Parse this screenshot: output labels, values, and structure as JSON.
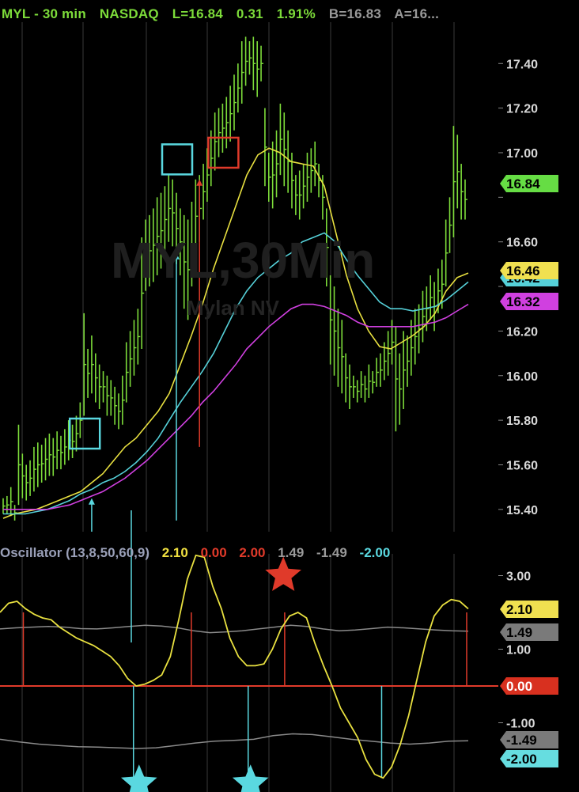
{
  "header": {
    "symbol_interval": "MYL - 30 min",
    "exchange": "NASDAQ",
    "last": "L=16.84",
    "change": "0.31",
    "change_pct": "1.91%",
    "bid": "B=16.83",
    "ask": "A=16..."
  },
  "watermark": {
    "symbol": "MYL,30Min",
    "name": "Mylan NV"
  },
  "oscillator_header": {
    "title": "Oscillator (13,8,50,60,9)",
    "values": [
      {
        "text": "2.10",
        "color": "#f0e040"
      },
      {
        "text": "0.00",
        "color": "#e03a2a"
      },
      {
        "text": "2.00",
        "color": "#e03a2a"
      },
      {
        "text": "1.49",
        "color": "#9a9a9a"
      },
      {
        "text": "-1.49",
        "color": "#9a9a9a"
      },
      {
        "text": "-2.00",
        "color": "#5ad8e0"
      }
    ]
  },
  "colors": {
    "bars": "#7ddc3a",
    "ma_fast": "#e8e040",
    "ma_mid": "#55d0d8",
    "ma_slow": "#d040e0",
    "osc_line": "#e8e040",
    "osc_band": "#8a8a8a",
    "zero_line": "#e03a2a",
    "grid": "#3a3a3a",
    "cyan_marker": "#5ad8e0",
    "red_marker": "#e03a2a"
  },
  "chart_data": [
    {
      "type": "bar",
      "name": "price",
      "ylim": [
        15.3,
        17.55
      ],
      "yticks": [
        15.4,
        15.6,
        15.8,
        16.0,
        16.2,
        16.4,
        16.6,
        16.8,
        17.0,
        17.2,
        17.4
      ],
      "ytick_labels": [
        "15.40",
        "15.60",
        "15.80",
        "16.00",
        "16.20",
        "",
        "16.60",
        "",
        "17.00",
        "17.20",
        "17.40"
      ],
      "bars": [
        [
          15.45,
          15.38
        ],
        [
          15.46,
          15.38
        ],
        [
          15.5,
          15.37
        ],
        [
          15.42,
          15.35
        ],
        [
          15.78,
          15.42
        ],
        [
          15.65,
          15.45
        ],
        [
          15.6,
          15.44
        ],
        [
          15.62,
          15.46
        ],
        [
          15.68,
          15.48
        ],
        [
          15.7,
          15.5
        ],
        [
          15.69,
          15.52
        ],
        [
          15.72,
          15.53
        ],
        [
          15.74,
          15.55
        ],
        [
          15.72,
          15.55
        ],
        [
          15.75,
          15.58
        ],
        [
          15.73,
          15.58
        ],
        [
          15.76,
          15.6
        ],
        [
          15.8,
          15.62
        ],
        [
          15.78,
          15.63
        ],
        [
          15.82,
          15.66
        ],
        [
          15.88,
          15.72
        ],
        [
          16.28,
          15.82
        ],
        [
          16.12,
          15.9
        ],
        [
          16.18,
          15.92
        ],
        [
          16.1,
          15.88
        ],
        [
          16.05,
          15.85
        ],
        [
          16.02,
          15.88
        ],
        [
          16.0,
          15.82
        ],
        [
          15.98,
          15.82
        ],
        [
          15.95,
          15.78
        ],
        [
          15.92,
          15.76
        ],
        [
          16.0,
          15.78
        ],
        [
          16.15,
          15.88
        ],
        [
          16.2,
          15.95
        ],
        [
          16.25,
          16.0
        ],
        [
          16.3,
          16.05
        ],
        [
          16.62,
          16.12
        ],
        [
          16.7,
          16.38
        ],
        [
          16.72,
          16.4
        ],
        [
          16.75,
          16.42
        ],
        [
          16.8,
          16.45
        ],
        [
          16.82,
          16.48
        ],
        [
          16.85,
          16.55
        ],
        [
          16.9,
          16.6
        ],
        [
          16.88,
          16.58
        ],
        [
          16.82,
          16.5
        ],
        [
          16.75,
          16.45
        ],
        [
          16.72,
          16.3
        ],
        [
          16.7,
          16.25
        ],
        [
          16.78,
          16.4
        ],
        [
          16.88,
          16.55
        ],
        [
          16.9,
          16.6
        ],
        [
          16.95,
          16.7
        ],
        [
          17.02,
          16.78
        ],
        [
          17.1,
          16.85
        ],
        [
          17.18,
          16.92
        ],
        [
          17.2,
          16.98
        ],
        [
          17.22,
          17.0
        ],
        [
          17.25,
          17.02
        ],
        [
          17.3,
          17.05
        ],
        [
          17.35,
          17.1
        ],
        [
          17.4,
          17.18
        ],
        [
          17.5,
          17.22
        ],
        [
          17.52,
          17.3
        ],
        [
          17.5,
          17.35
        ],
        [
          17.52,
          17.28
        ],
        [
          17.5,
          17.25
        ],
        [
          17.48,
          17.32
        ],
        [
          17.2,
          16.85
        ],
        [
          17.0,
          16.78
        ],
        [
          17.05,
          16.75
        ],
        [
          17.1,
          16.8
        ],
        [
          17.22,
          16.9
        ],
        [
          17.18,
          16.85
        ],
        [
          17.1,
          16.82
        ],
        [
          17.0,
          16.75
        ],
        [
          16.9,
          16.72
        ],
        [
          16.92,
          16.7
        ],
        [
          16.95,
          16.75
        ],
        [
          17.0,
          16.78
        ],
        [
          17.02,
          16.82
        ],
        [
          17.05,
          16.85
        ],
        [
          16.95,
          16.8
        ],
        [
          16.9,
          16.7
        ],
        [
          16.75,
          16.4
        ],
        [
          16.45,
          16.05
        ],
        [
          16.4,
          16.0
        ],
        [
          16.3,
          15.95
        ],
        [
          16.25,
          15.92
        ],
        [
          16.1,
          15.88
        ],
        [
          16.05,
          15.85
        ],
        [
          16.0,
          15.9
        ],
        [
          15.98,
          15.88
        ],
        [
          16.02,
          15.9
        ],
        [
          16.0,
          15.88
        ],
        [
          16.05,
          15.9
        ],
        [
          16.02,
          15.92
        ],
        [
          16.08,
          15.95
        ],
        [
          16.1,
          15.95
        ],
        [
          16.15,
          15.98
        ],
        [
          16.2,
          16.0
        ],
        [
          16.25,
          16.05
        ],
        [
          16.22,
          15.75
        ],
        [
          16.1,
          15.78
        ],
        [
          16.2,
          15.85
        ],
        [
          16.18,
          15.95
        ],
        [
          16.25,
          16.0
        ],
        [
          16.3,
          16.05
        ],
        [
          16.32,
          16.1
        ],
        [
          16.38,
          16.15
        ],
        [
          16.4,
          16.2
        ],
        [
          16.45,
          16.25
        ],
        [
          16.42,
          16.2
        ],
        [
          16.48,
          16.28
        ],
        [
          16.52,
          16.3
        ],
        [
          16.7,
          16.4
        ],
        [
          16.8,
          16.55
        ],
        [
          17.12,
          16.62
        ],
        [
          17.08,
          16.75
        ],
        [
          16.95,
          16.7
        ],
        [
          16.88,
          16.7
        ]
      ],
      "series": [
        {
          "name": "",
          "color": "#e8e040",
          "values": [
            15.36,
            15.38,
            15.39,
            15.4,
            15.42,
            15.44,
            15.46,
            15.48,
            15.52,
            15.56,
            15.62,
            15.68,
            15.72,
            15.78,
            15.84,
            15.92,
            16.05,
            16.18,
            16.32,
            16.48,
            16.62,
            16.76,
            16.9,
            16.99,
            17.02,
            17.0,
            16.96,
            16.95,
            16.94,
            16.85,
            16.65,
            16.45,
            16.3,
            16.2,
            16.13,
            16.12,
            16.15,
            16.18,
            16.22,
            16.28,
            16.38,
            16.44,
            16.46
          ]
        },
        {
          "name": "",
          "color": "#55d0d8",
          "values": [
            15.38,
            15.38,
            15.38,
            15.39,
            15.4,
            15.42,
            15.44,
            15.47,
            15.49,
            15.52,
            15.54,
            15.57,
            15.61,
            15.66,
            15.72,
            15.8,
            15.88,
            15.95,
            16.02,
            16.1,
            16.2,
            16.3,
            16.38,
            16.44,
            16.48,
            16.52,
            16.55,
            16.6,
            16.62,
            16.64,
            16.6,
            16.52,
            16.45,
            16.39,
            16.33,
            16.3,
            16.3,
            16.29,
            16.3,
            16.31,
            16.34,
            16.38,
            16.42
          ]
        },
        {
          "name": "",
          "color": "#d040e0",
          "values": [
            15.4,
            15.4,
            15.4,
            15.4,
            15.4,
            15.41,
            15.42,
            15.44,
            15.46,
            15.48,
            15.51,
            15.54,
            15.58,
            15.62,
            15.67,
            15.72,
            15.77,
            15.82,
            15.88,
            15.93,
            15.99,
            16.05,
            16.12,
            16.17,
            16.22,
            16.26,
            16.3,
            16.32,
            16.32,
            16.31,
            16.29,
            16.27,
            16.24,
            16.22,
            16.22,
            16.22,
            16.22,
            16.22,
            16.23,
            16.24,
            16.26,
            16.29,
            16.32
          ]
        }
      ],
      "value_tags": [
        {
          "text": "16.84",
          "value": 16.84,
          "color": "#66dd44"
        },
        {
          "text": "16.46",
          "value": 16.46,
          "color": "#f0e050"
        },
        {
          "text": "16.42",
          "value": 16.42,
          "color": "#55d0d8"
        },
        {
          "text": "16.32",
          "value": 16.32,
          "color": "#d040e0"
        }
      ],
      "markers": [
        {
          "kind": "box",
          "color": "#5ad8e0",
          "x_bar": 21,
          "y": 15.74
        },
        {
          "kind": "box",
          "color": "#5ad8e0",
          "x_bar": 45,
          "y": 16.97
        },
        {
          "kind": "box",
          "color": "#e03a2a",
          "x_bar": 57,
          "y": 17.0
        },
        {
          "kind": "arrow-up",
          "color": "#5ad8e0",
          "x_bar": 23,
          "y_from": 15.0,
          "y_to": 15.45
        },
        {
          "kind": "arrow-up",
          "color": "#5ad8e0",
          "x_bar": 45,
          "y_from": 15.35,
          "y_to": 16.55
        },
        {
          "kind": "arrow-up",
          "color": "#e03a2a",
          "x_bar": 51,
          "y_from": 15.68,
          "y_to": 16.88
        }
      ]
    },
    {
      "type": "line",
      "name": "oscillator",
      "ylim": [
        -3.0,
        4.0
      ],
      "yticks": [
        3.0,
        1.0,
        -1.0
      ],
      "ytick_labels": [
        "3.00",
        "1.00",
        "-1.00"
      ],
      "osc": [
        2.0,
        2.25,
        2.3,
        2.1,
        1.95,
        1.85,
        1.8,
        1.6,
        1.45,
        1.3,
        1.2,
        1.1,
        0.95,
        0.8,
        0.55,
        0.2,
        0.0,
        0.05,
        0.15,
        0.3,
        0.8,
        1.8,
        2.9,
        3.55,
        3.5,
        2.7,
        2.1,
        1.3,
        0.8,
        0.55,
        0.55,
        0.6,
        1.0,
        1.55,
        1.9,
        2.0,
        1.85,
        1.15,
        0.55,
        0.0,
        -0.6,
        -1.0,
        -1.4,
        -2.0,
        -2.4,
        -2.5,
        -2.2,
        -1.6,
        -0.8,
        0.2,
        1.2,
        1.9,
        2.2,
        2.35,
        2.3,
        2.1
      ],
      "band_upper": 1.49,
      "band_lower": -1.49,
      "upper_band_wave": [
        1.55,
        1.58,
        1.6,
        1.62,
        1.6,
        1.56,
        1.55,
        1.58,
        1.62,
        1.65,
        1.63,
        1.58,
        1.5,
        1.45,
        1.47,
        1.5,
        1.55,
        1.6,
        1.65,
        1.62,
        1.55,
        1.5,
        1.52,
        1.56,
        1.6,
        1.58,
        1.55,
        1.52,
        1.5,
        1.49
      ],
      "lower_band_wave": [
        -1.45,
        -1.52,
        -1.58,
        -1.62,
        -1.65,
        -1.66,
        -1.68,
        -1.7,
        -1.68,
        -1.62,
        -1.55,
        -1.5,
        -1.48,
        -1.45,
        -1.35,
        -1.3,
        -1.32,
        -1.38,
        -1.45,
        -1.5,
        -1.55,
        -1.58,
        -1.55,
        -1.5,
        -1.49
      ],
      "value_tags": [
        {
          "text": "2.10",
          "value": 2.1,
          "color": "#f0e050"
        },
        {
          "text": "1.49",
          "value": 1.49,
          "color": "#7a7a7a"
        },
        {
          "text": "0.00",
          "value": 0.0,
          "color": "#d8301f"
        },
        {
          "text": "-1.49",
          "value": -1.49,
          "color": "#7a7a7a"
        },
        {
          "text": "-2.00",
          "value": -2.0,
          "color": "#66dde0"
        }
      ],
      "stars": [
        {
          "color": "#5ad8e0",
          "x_frac": 0.297,
          "y": -2.65
        },
        {
          "color": "#5ad8e0",
          "x_frac": 0.535,
          "y": -2.65
        },
        {
          "color": "#e03a2a",
          "x_frac": 0.605,
          "y": 3.0
        }
      ],
      "red_lines_x_frac": [
        0.05,
        0.41,
        0.61,
        1.0
      ],
      "cyan_lines_x_frac": [
        0.285,
        0.53,
        0.815
      ]
    }
  ]
}
